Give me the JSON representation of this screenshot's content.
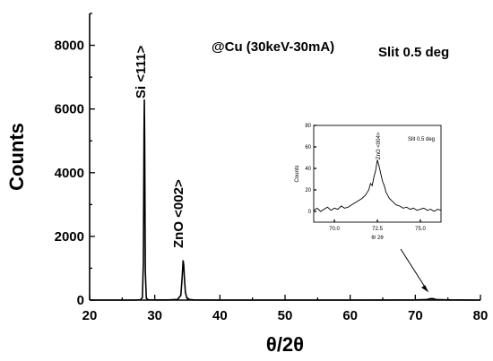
{
  "chart_data": [
    {
      "type": "line",
      "title": "",
      "xlabel": "θ/2θ",
      "ylabel": "Counts",
      "xlim": [
        20,
        80
      ],
      "ylim": [
        0,
        9000
      ],
      "x_ticks": [
        20,
        30,
        40,
        50,
        60,
        70,
        80
      ],
      "y_ticks": [
        0,
        2000,
        4000,
        6000,
        8000
      ],
      "grid": false,
      "annotations": [
        {
          "text": "@Cu (30keV-30mA)"
        },
        {
          "text": "Slit 0.5 deg"
        }
      ],
      "peak_labels": [
        {
          "text": "Si <111>",
          "x": 28.4,
          "y": 6300
        },
        {
          "text": "ZnO <002>",
          "x": 34.4,
          "y": 1250
        }
      ],
      "series": [
        {
          "x": [
            20,
            25,
            27,
            27.8,
            28.1,
            28.25,
            28.35,
            28.4,
            28.45,
            28.55,
            28.7,
            29,
            30,
            32,
            33.5,
            34.0,
            34.2,
            34.35,
            34.45,
            34.55,
            34.7,
            34.9,
            35.3,
            36,
            40,
            50,
            60,
            70,
            71.8,
            72.2,
            72.5,
            72.8,
            73.2,
            75,
            80
          ],
          "y": [
            0,
            0,
            0,
            10,
            80,
            1200,
            5200,
            6300,
            5000,
            900,
            60,
            10,
            5,
            5,
            20,
            150,
            700,
            1250,
            1100,
            700,
            250,
            80,
            20,
            5,
            0,
            0,
            0,
            5,
            15,
            40,
            48,
            40,
            15,
            5,
            0
          ]
        }
      ]
    },
    {
      "type": "line",
      "title": "",
      "xlabel": "θ/ 2θ",
      "ylabel": "Counts",
      "xlim": [
        68.8,
        76.2
      ],
      "ylim": [
        -10,
        80
      ],
      "x_ticks": [
        70.0,
        72.5,
        75.0
      ],
      "x_tick_labels": [
        "70.0",
        "72.5",
        "75.0"
      ],
      "y_ticks": [
        0,
        20,
        40,
        60,
        80
      ],
      "annotations": [
        {
          "text": "Slit 0.5 deg"
        }
      ],
      "peak_labels": [
        {
          "text": "ZnO <004>",
          "x": 72.5,
          "y": 48
        }
      ],
      "series": [
        {
          "x": [
            68.8,
            69.0,
            69.2,
            69.4,
            69.6,
            69.8,
            70.0,
            70.2,
            70.4,
            70.6,
            70.8,
            71.0,
            71.2,
            71.4,
            71.6,
            71.8,
            72.0,
            72.1,
            72.2,
            72.3,
            72.4,
            72.5,
            72.6,
            72.7,
            72.8,
            72.9,
            73.0,
            73.2,
            73.4,
            73.6,
            73.8,
            74.0,
            74.2,
            74.4,
            74.6,
            74.8,
            75.0,
            75.2,
            75.4,
            75.6,
            75.8,
            76.0,
            76.2
          ],
          "y": [
            1,
            3,
            0,
            2,
            4,
            1,
            3,
            2,
            5,
            3,
            4,
            6,
            8,
            10,
            12,
            15,
            20,
            26,
            24,
            32,
            38,
            48,
            42,
            35,
            28,
            24,
            18,
            12,
            9,
            6,
            5,
            3,
            4,
            2,
            3,
            1,
            2,
            3,
            1,
            2,
            0,
            2,
            1
          ]
        }
      ]
    }
  ]
}
